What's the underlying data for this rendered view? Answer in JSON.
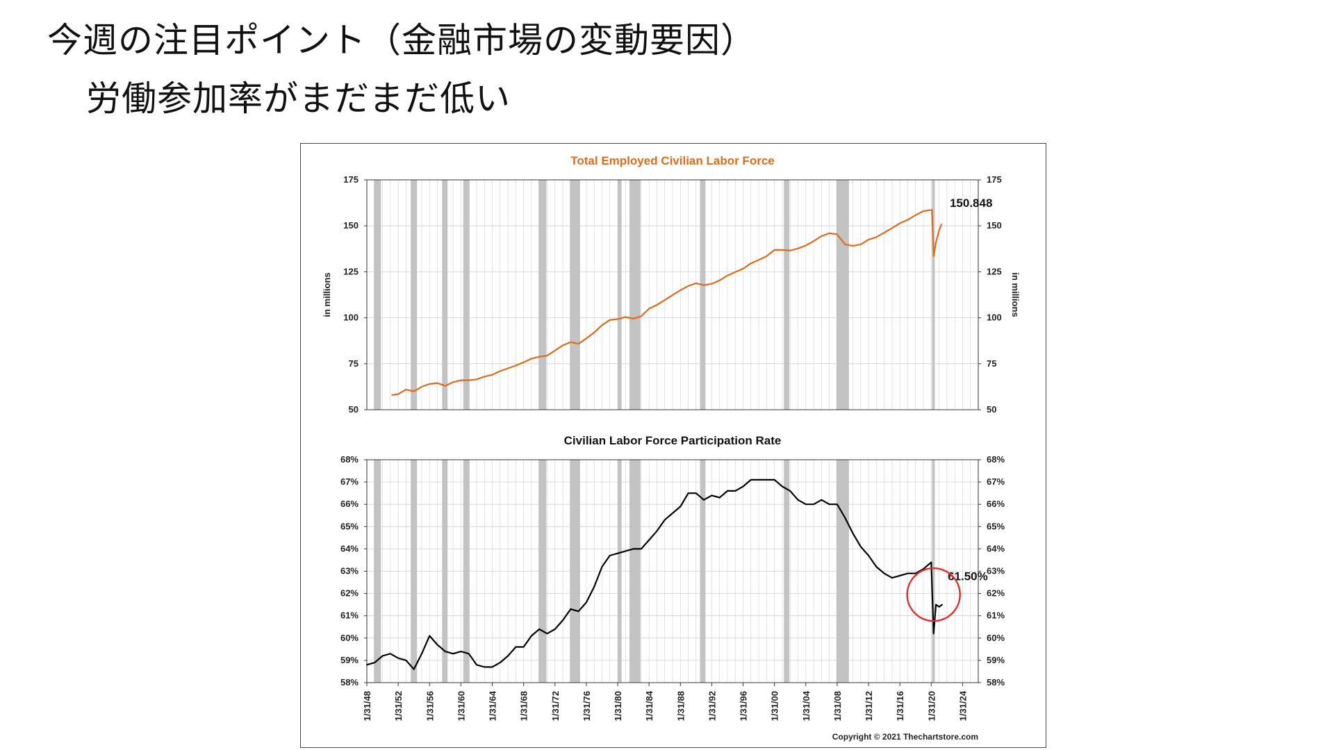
{
  "slide": {
    "title": "今週の注目ポイント（金融市場の変動要因）",
    "subtitle": "労働参加率がまだまだ低い"
  },
  "copyright": "Copyright © 2021 Thechartstore.com",
  "colors": {
    "employment_line": "#e06a1c",
    "employment_title": "#e06a1c",
    "participation_line": "#000000",
    "recession_band": "#c0c0c0",
    "grid": "#d0d0d0",
    "highlight_circle": "#e03030"
  },
  "x_ticks": [
    "1/31/48",
    "1/31/52",
    "1/31/56",
    "1/31/60",
    "1/31/64",
    "1/31/68",
    "1/31/72",
    "1/31/76",
    "1/31/80",
    "1/31/84",
    "1/31/88",
    "1/31/92",
    "1/31/96",
    "1/31/00",
    "1/31/04",
    "1/31/08",
    "1/31/12",
    "1/31/16",
    "1/31/20",
    "1/31/24"
  ],
  "recessions": [
    [
      1948.9,
      1949.8
    ],
    [
      1953.6,
      1954.4
    ],
    [
      1957.6,
      1958.3
    ],
    [
      1960.3,
      1961.1
    ],
    [
      1969.9,
      1970.9
    ],
    [
      1973.9,
      1975.2
    ],
    [
      1980.0,
      1980.5
    ],
    [
      1981.5,
      1982.9
    ],
    [
      1990.5,
      1991.2
    ],
    [
      2001.2,
      2001.9
    ],
    [
      2007.9,
      2009.5
    ],
    [
      2020.1,
      2020.4
    ]
  ],
  "chart_data": [
    {
      "type": "line",
      "title": "Total Employed Civilian Labor Force",
      "ylabel": "in millions",
      "ylim": [
        50,
        175
      ],
      "y_ticks": [
        "50",
        "75",
        "100",
        "125",
        "150",
        "175"
      ],
      "x_range": [
        1948,
        2026
      ],
      "grid": true,
      "series": [
        {
          "x": [
            1951.2,
            1952,
            1953,
            1954,
            1955,
            1956,
            1957,
            1958,
            1959,
            1960,
            1961,
            1962,
            1963,
            1964,
            1965,
            1966,
            1967,
            1968,
            1969,
            1970,
            1971,
            1972,
            1973,
            1974,
            1975,
            1976,
            1977,
            1978,
            1979,
            1980,
            1981,
            1982,
            1983,
            1984,
            1985,
            1986,
            1987,
            1988,
            1989,
            1990,
            1991,
            1992,
            1993,
            1994,
            1995,
            1996,
            1997,
            1998,
            1999,
            2000,
            2001,
            2002,
            2003,
            2004,
            2005,
            2006,
            2007,
            2008,
            2009,
            2010,
            2011,
            2012,
            2013,
            2014,
            2015,
            2016,
            2017,
            2018,
            2019,
            2020.1,
            2020.3,
            2020.6,
            2021.0,
            2021.3
          ],
          "values": [
            58,
            58.5,
            61,
            60,
            62.5,
            64,
            64.5,
            63,
            65,
            66,
            66,
            66.5,
            68,
            69,
            71,
            72.5,
            74,
            75.8,
            77.8,
            78.8,
            79.4,
            82.2,
            85,
            86.8,
            85.8,
            88.8,
            92,
            96,
            98.8,
            99.3,
            100.4,
            99.5,
            100.8,
            105,
            107,
            109.6,
            112.4,
            115,
            117.3,
            118.8,
            117.7,
            118.5,
            120.3,
            123,
            124.9,
            126.7,
            129.6,
            131.5,
            133.5,
            136.9,
            136.9,
            136.5,
            137.7,
            139.3,
            141.7,
            144.4,
            146,
            145.4,
            139.9,
            139.1,
            139.9,
            142.5,
            143.9,
            146.3,
            148.8,
            151.4,
            153.3,
            155.8,
            158,
            158.7,
            133.4,
            141,
            147.5,
            150.848
          ]
        }
      ],
      "annotations": [
        "150.848"
      ]
    },
    {
      "type": "line",
      "title": "Civilian Labor Force Participation Rate",
      "ylim": [
        58,
        68
      ],
      "y_ticks": [
        "58%",
        "59%",
        "60%",
        "61%",
        "62%",
        "63%",
        "64%",
        "65%",
        "66%",
        "67%",
        "68%"
      ],
      "x_range": [
        1948,
        2026
      ],
      "grid": true,
      "series": [
        {
          "x": [
            1948,
            1949,
            1950,
            1951,
            1952,
            1953,
            1954,
            1955,
            1956,
            1957,
            1958,
            1959,
            1960,
            1961,
            1962,
            1963,
            1964,
            1965,
            1966,
            1967,
            1968,
            1969,
            1970,
            1971,
            1972,
            1973,
            1974,
            1975,
            1976,
            1977,
            1978,
            1979,
            1980,
            1981,
            1982,
            1983,
            1984,
            1985,
            1986,
            1987,
            1988,
            1989,
            1990,
            1991,
            1992,
            1993,
            1994,
            1995,
            1996,
            1997,
            1998,
            1999,
            2000,
            2001,
            2002,
            2003,
            2004,
            2005,
            2006,
            2007,
            2008,
            2009,
            2010,
            2011,
            2012,
            2013,
            2014,
            2015,
            2016,
            2017,
            2018,
            2019,
            2020.0,
            2020.3,
            2020.6,
            2021.0,
            2021.4
          ],
          "values": [
            58.8,
            58.9,
            59.2,
            59.3,
            59.1,
            59.0,
            58.6,
            59.3,
            60.1,
            59.7,
            59.4,
            59.3,
            59.4,
            59.3,
            58.8,
            58.7,
            58.7,
            58.9,
            59.2,
            59.6,
            59.6,
            60.1,
            60.4,
            60.2,
            60.4,
            60.8,
            61.3,
            61.2,
            61.6,
            62.3,
            63.2,
            63.7,
            63.8,
            63.9,
            64.0,
            64.0,
            64.4,
            64.8,
            65.3,
            65.6,
            65.9,
            66.5,
            66.5,
            66.2,
            66.4,
            66.3,
            66.6,
            66.6,
            66.8,
            67.1,
            67.1,
            67.1,
            67.1,
            66.8,
            66.6,
            66.2,
            66.0,
            66.0,
            66.2,
            66.0,
            66.0,
            65.4,
            64.7,
            64.1,
            63.7,
            63.2,
            62.9,
            62.7,
            62.8,
            62.9,
            62.9,
            63.1,
            63.4,
            60.2,
            61.5,
            61.4,
            61.5
          ]
        }
      ],
      "annotations": [
        "61.50%"
      ]
    }
  ]
}
